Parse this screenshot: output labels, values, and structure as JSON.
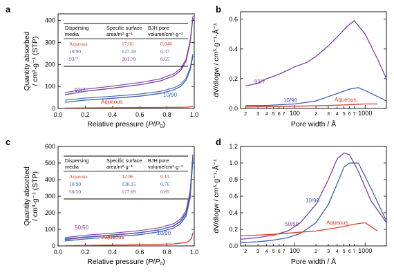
{
  "colors": {
    "aqueous": "#d6402c",
    "purple": "#7b3fa3",
    "blue": "#3a5fb0"
  },
  "chart_data": [
    {
      "panel": "a",
      "type": "line",
      "xlabel": "Relative pressure (P/P0)",
      "ylabel": "Quantity absorbed / cm³·g⁻¹ (STP)",
      "xlim": [
        0,
        1.0
      ],
      "ylim": [
        0,
        430
      ],
      "xticks": [
        "0.0",
        "0.2",
        "0.4",
        "0.6",
        "0.8",
        "1.0"
      ],
      "yticks": [
        "0",
        "100",
        "200",
        "300",
        "400"
      ],
      "series": [
        {
          "name": "93/7",
          "color": "#7b3fa3",
          "x": [
            0.05,
            0.2,
            0.4,
            0.6,
            0.75,
            0.85,
            0.9,
            0.94,
            0.97,
            0.99
          ],
          "y": [
            62,
            78,
            92,
            108,
            125,
            148,
            172,
            215,
            300,
            410
          ]
        },
        {
          "name": "10/90",
          "color": "#3a5fb0",
          "x": [
            0.05,
            0.2,
            0.4,
            0.6,
            0.75,
            0.85,
            0.9,
            0.94,
            0.97,
            0.99
          ],
          "y": [
            28,
            38,
            46,
            56,
            68,
            84,
            100,
            128,
            175,
            238
          ]
        },
        {
          "name": "Aqueous",
          "color": "#d6402c",
          "x": [
            0.05,
            0.3,
            0.6,
            0.85,
            0.95,
            0.99
          ],
          "y": [
            2,
            3,
            4,
            5,
            6,
            10
          ]
        }
      ],
      "table": {
        "headers": [
          "Dispersing media",
          "Specific surface area/m²·g⁻¹",
          "BJH pore volume/cm³·g⁻¹"
        ],
        "rows": [
          [
            "Aqueous",
            "17.66",
            "0.046"
          ],
          [
            "10/90",
            "127.18",
            "0.37"
          ],
          [
            "93/7",
            "201.70",
            "0.65"
          ]
        ]
      }
    },
    {
      "panel": "b",
      "type": "line",
      "xlabel": "Pore width / Å",
      "ylabel": "dV/dlogw / cm³·g⁻¹·Å⁻¹",
      "xscale": "log",
      "xlim": [
        17,
        2000
      ],
      "ylim": [
        0,
        0.65
      ],
      "xticks": [
        "100",
        "1000"
      ],
      "minor_xticks": [
        "2",
        "3",
        "4",
        "5",
        "6",
        "7",
        "2",
        "3",
        "4",
        "5",
        "6",
        "7"
      ],
      "yticks": [
        "0.0",
        "0.2",
        "0.4",
        "0.6"
      ],
      "series": [
        {
          "name": "93/7",
          "color": "#7b3fa3",
          "x": [
            20,
            30,
            40,
            60,
            100,
            150,
            200,
            300,
            400,
            550,
            700,
            1000,
            1500,
            2000
          ],
          "y": [
            0.15,
            0.17,
            0.2,
            0.23,
            0.28,
            0.31,
            0.35,
            0.42,
            0.48,
            0.55,
            0.59,
            0.5,
            0.33,
            0.2
          ]
        },
        {
          "name": "10/90",
          "color": "#3a5fb0",
          "x": [
            20,
            40,
            60,
            100,
            200,
            300,
            400,
            600,
            800,
            1000,
            1500,
            2000
          ],
          "y": [
            0.02,
            0.02,
            0.025,
            0.03,
            0.05,
            0.08,
            0.1,
            0.13,
            0.14,
            0.12,
            0.08,
            0.05
          ]
        },
        {
          "name": "Aqueous",
          "color": "#d6402c",
          "x": [
            20,
            100,
            300,
            600,
            1000,
            1500
          ],
          "y": [
            0.01,
            0.015,
            0.02,
            0.025,
            0.03,
            0.03
          ]
        }
      ]
    },
    {
      "panel": "c",
      "type": "line",
      "xlabel": "Relative pressure (P/P0)",
      "ylabel": "Quantity absorbed / cm³·g⁻¹ (STP)",
      "xlim": [
        0,
        1.0
      ],
      "ylim": [
        0,
        600
      ],
      "xticks": [
        "0.0",
        "0.2",
        "0.4",
        "0.6",
        "0.8",
        "1.0"
      ],
      "yticks": [
        "0",
        "100",
        "200",
        "300",
        "400",
        "500",
        "600"
      ],
      "series": [
        {
          "name": "50/50",
          "color": "#7b3fa3",
          "x": [
            0.05,
            0.2,
            0.4,
            0.6,
            0.75,
            0.85,
            0.9,
            0.94,
            0.97,
            0.99
          ],
          "y": [
            38,
            52,
            64,
            80,
            98,
            122,
            150,
            200,
            320,
            540
          ]
        },
        {
          "name": "10/90",
          "color": "#3a5fb0",
          "x": [
            0.05,
            0.2,
            0.4,
            0.6,
            0.75,
            0.85,
            0.9,
            0.94,
            0.97,
            0.99
          ],
          "y": [
            30,
            42,
            54,
            68,
            86,
            108,
            135,
            180,
            290,
            520
          ]
        },
        {
          "name": "Aqueous",
          "color": "#d6402c",
          "x": [
            0.05,
            0.3,
            0.6,
            0.85,
            0.95,
            0.98,
            0.99
          ],
          "y": [
            2,
            4,
            7,
            12,
            22,
            45,
            80
          ]
        }
      ],
      "table": {
        "headers": [
          "Dispersing media",
          "Specific surface area/m²·g⁻¹",
          "BJH pore volume/cm³·g⁻¹"
        ],
        "rows": [
          [
            "Aqueous",
            "32.96",
            "0.13"
          ],
          [
            "10/90",
            "138.15",
            "0.76"
          ],
          [
            "50/50",
            "177.69",
            "0.85"
          ]
        ]
      }
    },
    {
      "panel": "d",
      "type": "line",
      "xlabel": "Pore width / Å",
      "ylabel": "dV/dlogw / cm³·g⁻¹·Å⁻¹",
      "xscale": "log",
      "xlim": [
        17,
        2000
      ],
      "ylim": [
        0,
        1.2
      ],
      "xticks": [
        "100",
        "1000"
      ],
      "minor_xticks": [
        "2",
        "3",
        "4",
        "5",
        "6",
        "7",
        "2",
        "3",
        "4",
        "5",
        "6",
        "7"
      ],
      "yticks": [
        "0.0",
        "0.2",
        "0.4",
        "0.6",
        "0.8",
        "1.0",
        "1.2"
      ],
      "series": [
        {
          "name": "50/50",
          "color": "#7b3fa3",
          "x": [
            17,
            30,
            50,
            80,
            120,
            200,
            300,
            400,
            500,
            600,
            800,
            1200,
            2000
          ],
          "y": [
            0.08,
            0.1,
            0.13,
            0.18,
            0.28,
            0.5,
            0.8,
            1.05,
            1.12,
            1.1,
            0.9,
            0.55,
            0.28
          ]
        },
        {
          "name": "10/90",
          "color": "#3a5fb0",
          "x": [
            17,
            30,
            50,
            80,
            120,
            200,
            300,
            400,
            500,
            600,
            800,
            1200,
            2000
          ],
          "y": [
            0.04,
            0.05,
            0.07,
            0.1,
            0.15,
            0.28,
            0.5,
            0.75,
            0.95,
            1.0,
            1.0,
            0.7,
            0.3
          ]
        },
        {
          "name": "Aqueous",
          "color": "#d6402c",
          "x": [
            17,
            50,
            100,
            200,
            400,
            600,
            800,
            1000,
            1500
          ],
          "y": [
            0.12,
            0.14,
            0.16,
            0.18,
            0.22,
            0.25,
            0.27,
            0.28,
            0.18
          ]
        }
      ]
    }
  ]
}
